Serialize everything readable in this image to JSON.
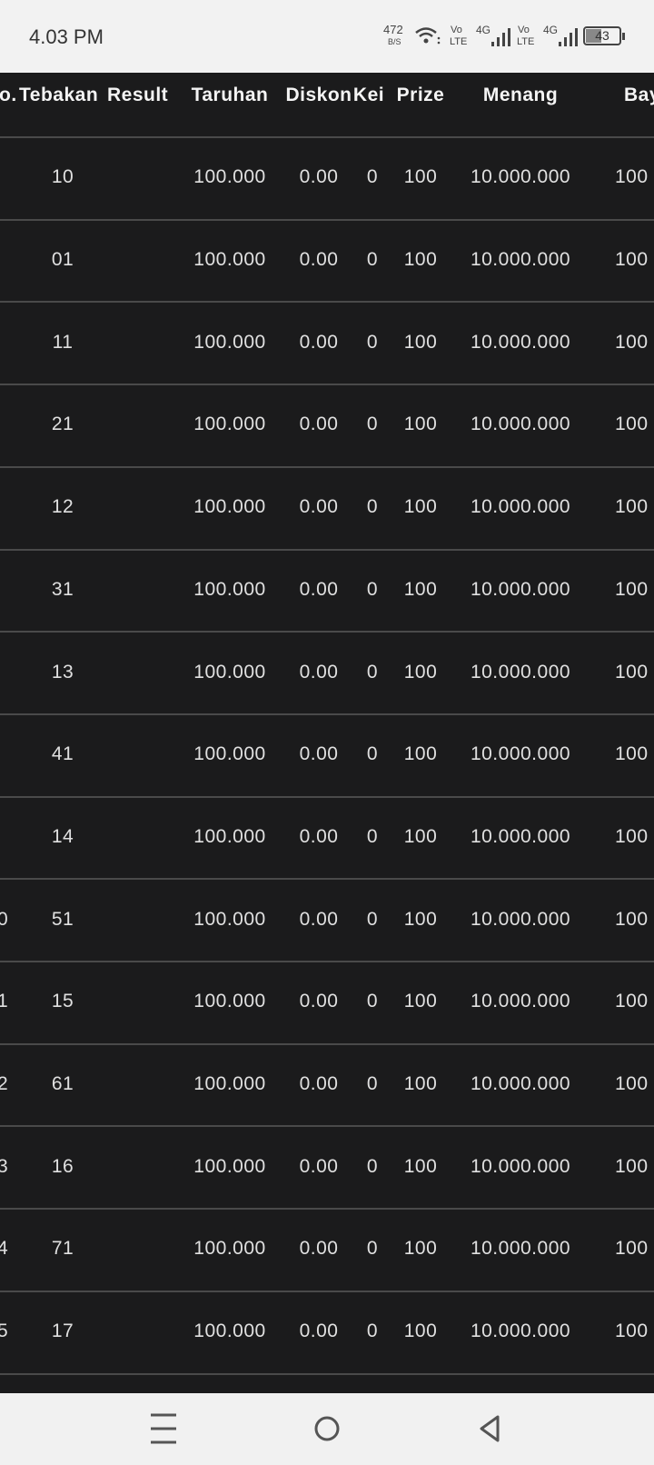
{
  "status": {
    "time": "4.03 PM",
    "speed": "472",
    "speed_unit": "B/S",
    "volte_1": [
      "Vo",
      "LTE"
    ],
    "network_1": "4G",
    "volte_2": [
      "Vo",
      "LTE"
    ],
    "network_2": "4G",
    "battery": "43"
  },
  "table": {
    "header": [
      "o.",
      "Tebakan",
      "Result",
      "Taruhan",
      "Diskon",
      "Kei",
      "Prize",
      "Menang",
      "Bay"
    ],
    "rows": [
      [
        null,
        "10",
        null,
        "100.000",
        "0.00",
        "0",
        "100",
        "10.000.000",
        "100"
      ],
      [
        null,
        "01",
        null,
        "100.000",
        "0.00",
        "0",
        "100",
        "10.000.000",
        "100"
      ],
      [
        null,
        "11",
        null,
        "100.000",
        "0.00",
        "0",
        "100",
        "10.000.000",
        "100"
      ],
      [
        null,
        "21",
        null,
        "100.000",
        "0.00",
        "0",
        "100",
        "10.000.000",
        "100"
      ],
      [
        null,
        "12",
        null,
        "100.000",
        "0.00",
        "0",
        "100",
        "10.000.000",
        "100"
      ],
      [
        null,
        "31",
        null,
        "100.000",
        "0.00",
        "0",
        "100",
        "10.000.000",
        "100"
      ],
      [
        null,
        "13",
        null,
        "100.000",
        "0.00",
        "0",
        "100",
        "10.000.000",
        "100"
      ],
      [
        null,
        "41",
        null,
        "100.000",
        "0.00",
        "0",
        "100",
        "10.000.000",
        "100"
      ],
      [
        null,
        "14",
        null,
        "100.000",
        "0.00",
        "0",
        "100",
        "10.000.000",
        "100"
      ],
      [
        "0",
        "51",
        null,
        "100.000",
        "0.00",
        "0",
        "100",
        "10.000.000",
        "100"
      ],
      [
        "1",
        "15",
        null,
        "100.000",
        "0.00",
        "0",
        "100",
        "10.000.000",
        "100"
      ],
      [
        "2",
        "61",
        null,
        "100.000",
        "0.00",
        "0",
        "100",
        "10.000.000",
        "100"
      ],
      [
        "3",
        "16",
        null,
        "100.000",
        "0.00",
        "0",
        "100",
        "10.000.000",
        "100"
      ],
      [
        "4",
        "71",
        null,
        "100.000",
        "0.00",
        "0",
        "100",
        "10.000.000",
        "100"
      ],
      [
        "5",
        "17",
        null,
        "100.000",
        "0.00",
        "0",
        "100",
        "10.000.000",
        "100"
      ]
    ]
  }
}
